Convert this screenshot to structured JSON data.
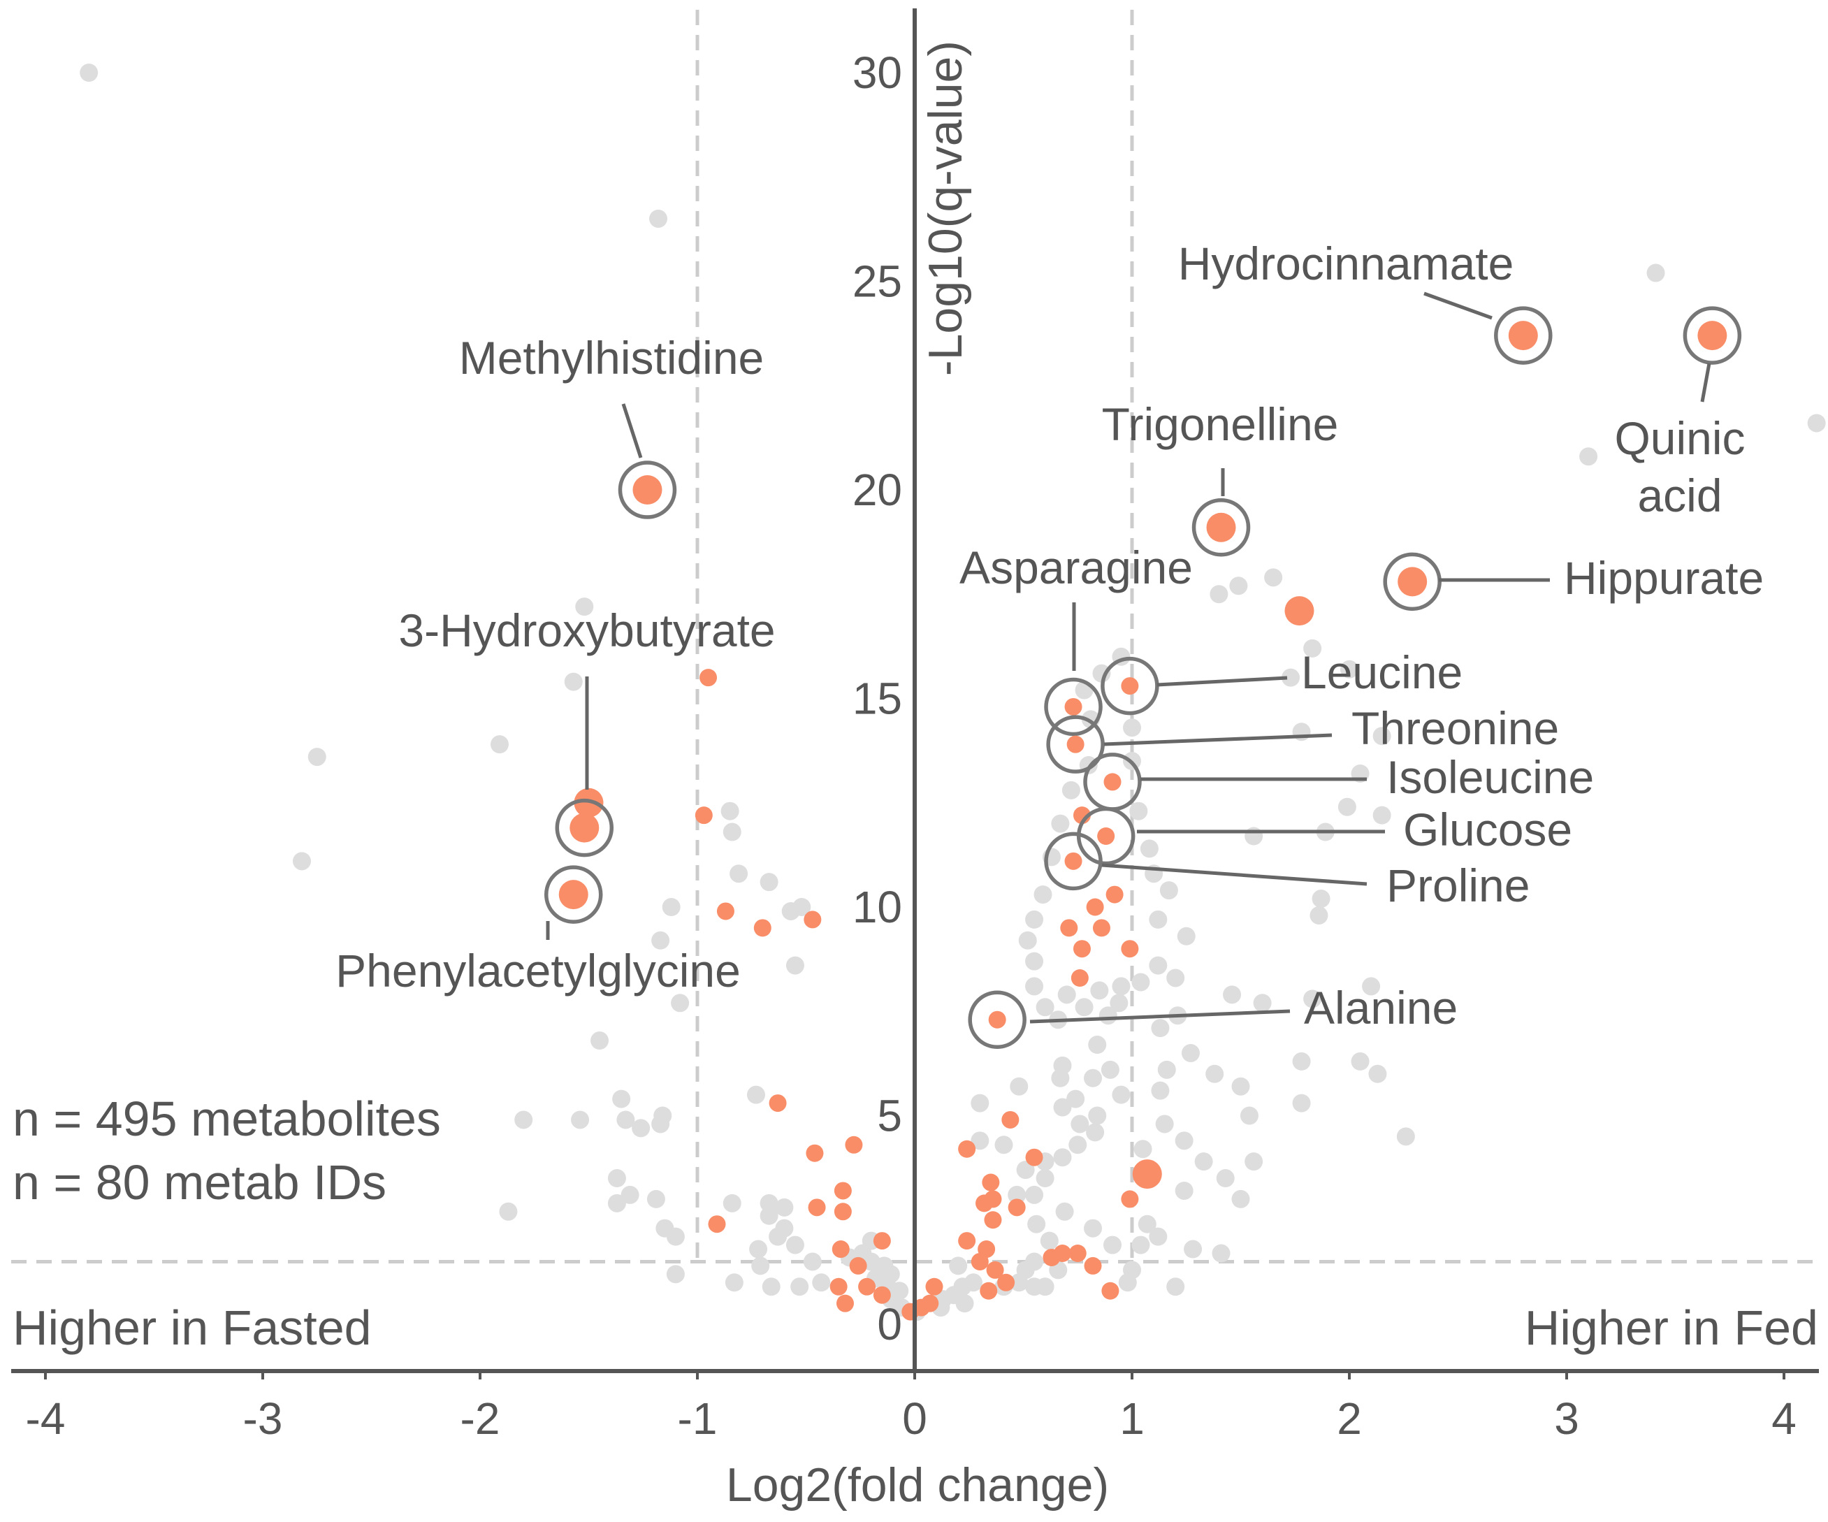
{
  "chart_data": {
    "type": "scatter",
    "subtype": "volcano",
    "xlabel": "Log2(fold change)",
    "ylabel": "-Log10(q-value)",
    "xlim": [
      -4.15,
      4.2
    ],
    "ylim": [
      -0.95,
      31.6
    ],
    "xticks": [
      -4,
      -3,
      -2,
      -1,
      0,
      1,
      2,
      3,
      4
    ],
    "yticks": [
      0,
      5,
      10,
      15,
      20,
      25,
      30
    ],
    "xtick_labels": [
      "-4",
      "-3",
      "-2",
      "-1",
      "0",
      "1",
      "2",
      "3",
      "4"
    ],
    "ytick_labels": [
      "0",
      "5",
      "10",
      "15",
      "20",
      "25",
      "30"
    ],
    "grid": false,
    "thresholds": {
      "x": [
        -1,
        1
      ],
      "y": 1.5
    },
    "annotations": {
      "left_region": "Higher in Fasted",
      "right_region": "Higher in Fed",
      "counts": [
        "n = 495 metabolites",
        "n = 80 metab IDs"
      ]
    },
    "colors": {
      "background_points": "#dddddd",
      "highlight_points": "#f98d68",
      "circle_outline": "#777777",
      "leader_line": "#666666",
      "threshold_line": "#cccccc",
      "axis": "#555555",
      "text": "#555555"
    },
    "labeled_points": [
      {
        "name": "Methylhistidine",
        "x": -1.23,
        "y": 20.0
      },
      {
        "name": "3-Hydroxybutyrate",
        "x": -1.52,
        "y": 11.9
      },
      {
        "name": "Phenylacetylglycine",
        "x": -1.57,
        "y": 10.3
      },
      {
        "name": "Hydrocinnamate",
        "x": 2.8,
        "y": 23.7
      },
      {
        "name": "Quinic acid",
        "x": 3.67,
        "y": 23.7
      },
      {
        "name": "Trigonelline",
        "x": 1.41,
        "y": 19.1
      },
      {
        "name": "Hippurate",
        "x": 2.29,
        "y": 17.8
      },
      {
        "name": "Asparagine",
        "x": 0.73,
        "y": 14.8
      },
      {
        "name": "Leucine",
        "x": 0.99,
        "y": 15.3
      },
      {
        "name": "Threonine",
        "x": 0.74,
        "y": 13.9
      },
      {
        "name": "Isoleucine",
        "x": 0.91,
        "y": 13.0
      },
      {
        "name": "Glucose",
        "x": 0.88,
        "y": 11.7
      },
      {
        "name": "Proline",
        "x": 0.73,
        "y": 11.1
      },
      {
        "name": "Alanine",
        "x": 0.38,
        "y": 7.3
      }
    ],
    "significant_points": [
      [
        -1.5,
        12.5
      ],
      [
        -0.95,
        15.5
      ],
      [
        -0.97,
        12.2
      ],
      [
        -0.87,
        9.9
      ],
      [
        -0.7,
        9.5
      ],
      [
        -0.47,
        9.7
      ],
      [
        1.77,
        17.1
      ],
      [
        1.07,
        3.6
      ],
      [
        0.77,
        12.2
      ],
      [
        0.92,
        10.3
      ],
      [
        0.83,
        10.0
      ],
      [
        0.71,
        9.5
      ],
      [
        0.86,
        9.5
      ],
      [
        0.77,
        9.0
      ],
      [
        0.99,
        9.0
      ],
      [
        0.76,
        8.3
      ],
      [
        -0.63,
        5.3
      ],
      [
        -0.46,
        4.1
      ],
      [
        -0.28,
        4.3
      ],
      [
        -0.33,
        3.2
      ],
      [
        -0.45,
        2.8
      ],
      [
        -0.33,
        2.7
      ],
      [
        -0.91,
        2.4
      ],
      [
        -0.34,
        1.8
      ],
      [
        -0.26,
        1.4
      ],
      [
        -0.15,
        2.0
      ],
      [
        -0.35,
        0.9
      ],
      [
        -0.22,
        0.9
      ],
      [
        -0.15,
        0.7
      ],
      [
        -0.32,
        0.5
      ],
      [
        -0.02,
        0.3
      ],
      [
        0.03,
        0.4
      ],
      [
        0.09,
        0.9
      ],
      [
        0.07,
        0.5
      ],
      [
        0.24,
        4.2
      ],
      [
        0.44,
        4.9
      ],
      [
        0.55,
        4.0
      ],
      [
        0.35,
        3.4
      ],
      [
        0.36,
        3.0
      ],
      [
        0.32,
        2.9
      ],
      [
        0.47,
        2.8
      ],
      [
        0.36,
        2.5
      ],
      [
        0.24,
        2.0
      ],
      [
        0.33,
        1.8
      ],
      [
        0.3,
        1.5
      ],
      [
        0.37,
        1.3
      ],
      [
        0.42,
        1.0
      ],
      [
        0.34,
        0.8
      ],
      [
        0.68,
        1.7
      ],
      [
        0.75,
        1.7
      ],
      [
        0.63,
        1.6
      ],
      [
        0.82,
        1.4
      ],
      [
        0.9,
        0.8
      ],
      [
        0.99,
        3.0
      ]
    ],
    "background_points": [
      [
        -3.8,
        30.0
      ],
      [
        -1.18,
        26.5
      ],
      [
        3.41,
        25.2
      ],
      [
        4.15,
        21.6
      ],
      [
        3.1,
        20.8
      ],
      [
        -1.52,
        17.2
      ],
      [
        -1.57,
        15.4
      ],
      [
        -1.91,
        13.9
      ],
      [
        -2.75,
        13.6
      ],
      [
        -2.82,
        11.1
      ],
      [
        -0.85,
        12.3
      ],
      [
        -0.84,
        11.8
      ],
      [
        -0.81,
        10.8
      ],
      [
        -0.57,
        9.9
      ],
      [
        -0.67,
        10.6
      ],
      [
        -0.52,
        10.0
      ],
      [
        -1.12,
        10.0
      ],
      [
        -1.17,
        9.2
      ],
      [
        -0.55,
        8.6
      ],
      [
        -1.08,
        7.7
      ],
      [
        -1.45,
        6.8
      ],
      [
        -0.73,
        5.5
      ],
      [
        -1.16,
        5.0
      ],
      [
        -1.33,
        4.9
      ],
      [
        -1.54,
        4.9
      ],
      [
        -1.35,
        5.4
      ],
      [
        -1.17,
        4.8
      ],
      [
        -1.8,
        4.9
      ],
      [
        -1.26,
        4.7
      ],
      [
        -1.37,
        3.5
      ],
      [
        -1.31,
        3.1
      ],
      [
        -1.19,
        3.0
      ],
      [
        -1.15,
        2.3
      ],
      [
        -1.1,
        2.1
      ],
      [
        -1.1,
        1.2
      ],
      [
        -1.87,
        2.7
      ],
      [
        -1.37,
        2.9
      ],
      [
        -0.84,
        2.9
      ],
      [
        -0.67,
        2.9
      ],
      [
        -0.67,
        2.6
      ],
      [
        -0.6,
        2.8
      ],
      [
        -0.6,
        2.3
      ],
      [
        -0.63,
        2.1
      ],
      [
        -0.55,
        1.9
      ],
      [
        -0.47,
        1.5
      ],
      [
        -0.72,
        1.8
      ],
      [
        -0.71,
        1.4
      ],
      [
        -0.83,
        1.0
      ],
      [
        -0.66,
        0.9
      ],
      [
        -0.53,
        0.9
      ],
      [
        -0.43,
        1.0
      ],
      [
        -0.3,
        1.6
      ],
      [
        -0.24,
        1.7
      ],
      [
        -0.2,
        2.0
      ],
      [
        -0.2,
        1.5
      ],
      [
        -0.14,
        1.4
      ],
      [
        -0.11,
        1.2
      ],
      [
        -0.18,
        1.1
      ],
      [
        -0.13,
        1.0
      ],
      [
        -0.07,
        0.8
      ],
      [
        -0.11,
        0.6
      ],
      [
        -0.06,
        0.4
      ],
      [
        0.01,
        0.3
      ],
      [
        0.12,
        0.4
      ],
      [
        0.13,
        0.6
      ],
      [
        0.18,
        0.7
      ],
      [
        0.22,
        0.9
      ],
      [
        0.27,
        1.0
      ],
      [
        0.2,
        1.4
      ],
      [
        0.23,
        0.5
      ],
      [
        0.41,
        0.9
      ],
      [
        0.48,
        1.0
      ],
      [
        0.55,
        0.9
      ],
      [
        0.51,
        1.3
      ],
      [
        0.55,
        1.5
      ],
      [
        0.6,
        0.9
      ],
      [
        0.66,
        1.3
      ],
      [
        0.62,
        2.0
      ],
      [
        0.56,
        2.4
      ],
      [
        0.55,
        3.1
      ],
      [
        0.47,
        3.1
      ],
      [
        0.51,
        3.7
      ],
      [
        0.6,
        3.9
      ],
      [
        0.68,
        4.0
      ],
      [
        0.76,
        4.8
      ],
      [
        0.75,
        4.3
      ],
      [
        0.83,
        4.6
      ],
      [
        0.84,
        5.0
      ],
      [
        0.74,
        5.4
      ],
      [
        0.67,
        5.9
      ],
      [
        0.68,
        5.2
      ],
      [
        0.82,
        5.9
      ],
      [
        0.9,
        6.1
      ],
      [
        0.95,
        5.5
      ],
      [
        0.84,
        6.7
      ],
      [
        0.89,
        7.4
      ],
      [
        0.94,
        7.7
      ],
      [
        0.78,
        7.6
      ],
      [
        0.7,
        7.9
      ],
      [
        0.85,
        8.0
      ],
      [
        0.95,
        8.1
      ],
      [
        1.04,
        8.2
      ],
      [
        1.12,
        8.6
      ],
      [
        1.2,
        8.3
      ],
      [
        1.13,
        7.1
      ],
      [
        1.21,
        7.4
      ],
      [
        1.16,
        6.1
      ],
      [
        1.27,
        6.5
      ],
      [
        1.13,
        5.6
      ],
      [
        1.15,
        4.8
      ],
      [
        1.24,
        4.4
      ],
      [
        1.33,
        3.9
      ],
      [
        1.05,
        4.2
      ],
      [
        1.24,
        3.2
      ],
      [
        1.07,
        2.4
      ],
      [
        1.04,
        1.9
      ],
      [
        0.91,
        1.9
      ],
      [
        1.0,
        1.3
      ],
      [
        0.98,
        1.0
      ],
      [
        1.12,
        2.1
      ],
      [
        0.82,
        2.3
      ],
      [
        0.69,
        2.7
      ],
      [
        0.6,
        3.5
      ],
      [
        0.41,
        4.3
      ],
      [
        0.3,
        4.4
      ],
      [
        0.3,
        5.3
      ],
      [
        0.48,
        5.7
      ],
      [
        0.68,
        6.2
      ],
      [
        0.66,
        7.3
      ],
      [
        0.6,
        7.6
      ],
      [
        0.55,
        8.1
      ],
      [
        0.55,
        8.7
      ],
      [
        0.52,
        9.2
      ],
      [
        0.55,
        9.7
      ],
      [
        0.59,
        10.3
      ],
      [
        0.63,
        11.2
      ],
      [
        0.67,
        12.0
      ],
      [
        0.72,
        12.8
      ],
      [
        0.8,
        13.4
      ],
      [
        0.81,
        14.5
      ],
      [
        0.78,
        15.2
      ],
      [
        0.86,
        15.6
      ],
      [
        0.95,
        16.0
      ],
      [
        1.0,
        14.3
      ],
      [
        1.0,
        13.5
      ],
      [
        1.03,
        12.3
      ],
      [
        1.08,
        11.4
      ],
      [
        1.1,
        10.8
      ],
      [
        1.17,
        10.4
      ],
      [
        1.12,
        9.7
      ],
      [
        1.25,
        9.3
      ],
      [
        1.4,
        17.5
      ],
      [
        1.49,
        17.7
      ],
      [
        1.65,
        17.9
      ],
      [
        1.83,
        16.2
      ],
      [
        1.73,
        15.5
      ],
      [
        1.78,
        14.2
      ],
      [
        2.0,
        15.7
      ],
      [
        2.15,
        14.1
      ],
      [
        2.05,
        13.2
      ],
      [
        1.99,
        12.4
      ],
      [
        2.15,
        12.2
      ],
      [
        1.89,
        11.8
      ],
      [
        1.56,
        11.7
      ],
      [
        1.87,
        10.2
      ],
      [
        1.86,
        9.8
      ],
      [
        2.1,
        8.1
      ],
      [
        1.83,
        7.8
      ],
      [
        1.6,
        7.7
      ],
      [
        1.46,
        7.9
      ],
      [
        1.38,
        6.0
      ],
      [
        1.5,
        5.7
      ],
      [
        1.54,
        5.0
      ],
      [
        1.78,
        6.3
      ],
      [
        2.05,
        6.3
      ],
      [
        2.13,
        6.0
      ],
      [
        1.78,
        5.3
      ],
      [
        2.26,
        4.5
      ],
      [
        1.56,
        3.9
      ],
      [
        1.43,
        3.5
      ],
      [
        1.5,
        3.0
      ],
      [
        1.41,
        1.7
      ],
      [
        1.28,
        1.8
      ],
      [
        1.2,
        0.9
      ]
    ]
  }
}
